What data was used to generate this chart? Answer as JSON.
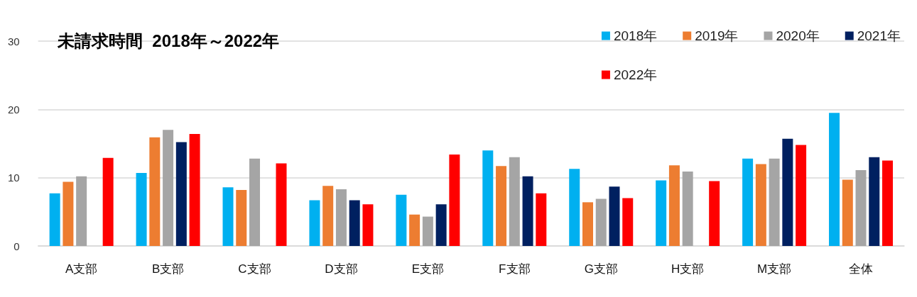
{
  "chart_data": {
    "type": "bar",
    "title": "未請求時間  2018年～2022年",
    "categories": [
      "A支部",
      "B支部",
      "C支部",
      "D支部",
      "E支部",
      "F支部",
      "G支部",
      "H支部",
      "M支部",
      "全体"
    ],
    "series": [
      {
        "name": "2018年",
        "color": "#00b0f0",
        "values": [
          7.7,
          10.7,
          8.6,
          6.7,
          7.5,
          14.0,
          11.3,
          9.6,
          12.8,
          19.5
        ]
      },
      {
        "name": "2019年",
        "color": "#ed7d31",
        "values": [
          9.4,
          15.9,
          8.2,
          8.8,
          4.6,
          11.7,
          6.4,
          11.8,
          12.0,
          9.7
        ]
      },
      {
        "name": "2020年",
        "color": "#a5a5a5",
        "values": [
          10.2,
          17.0,
          12.8,
          8.3,
          4.3,
          13.0,
          6.9,
          10.9,
          12.8,
          11.1
        ]
      },
      {
        "name": "2021年",
        "color": "#002060",
        "values": [
          null,
          15.2,
          null,
          6.7,
          6.1,
          10.2,
          8.7,
          null,
          15.7,
          13.0
        ]
      },
      {
        "name": "2022年",
        "color": "#ff0000",
        "values": [
          12.9,
          16.4,
          12.1,
          6.1,
          13.4,
          7.7,
          7.0,
          9.5,
          14.8,
          12.5
        ]
      }
    ],
    "ylim": [
      0,
      30
    ],
    "yticks": [
      0,
      10,
      20,
      30
    ],
    "grid": "y",
    "legend": "top right"
  }
}
